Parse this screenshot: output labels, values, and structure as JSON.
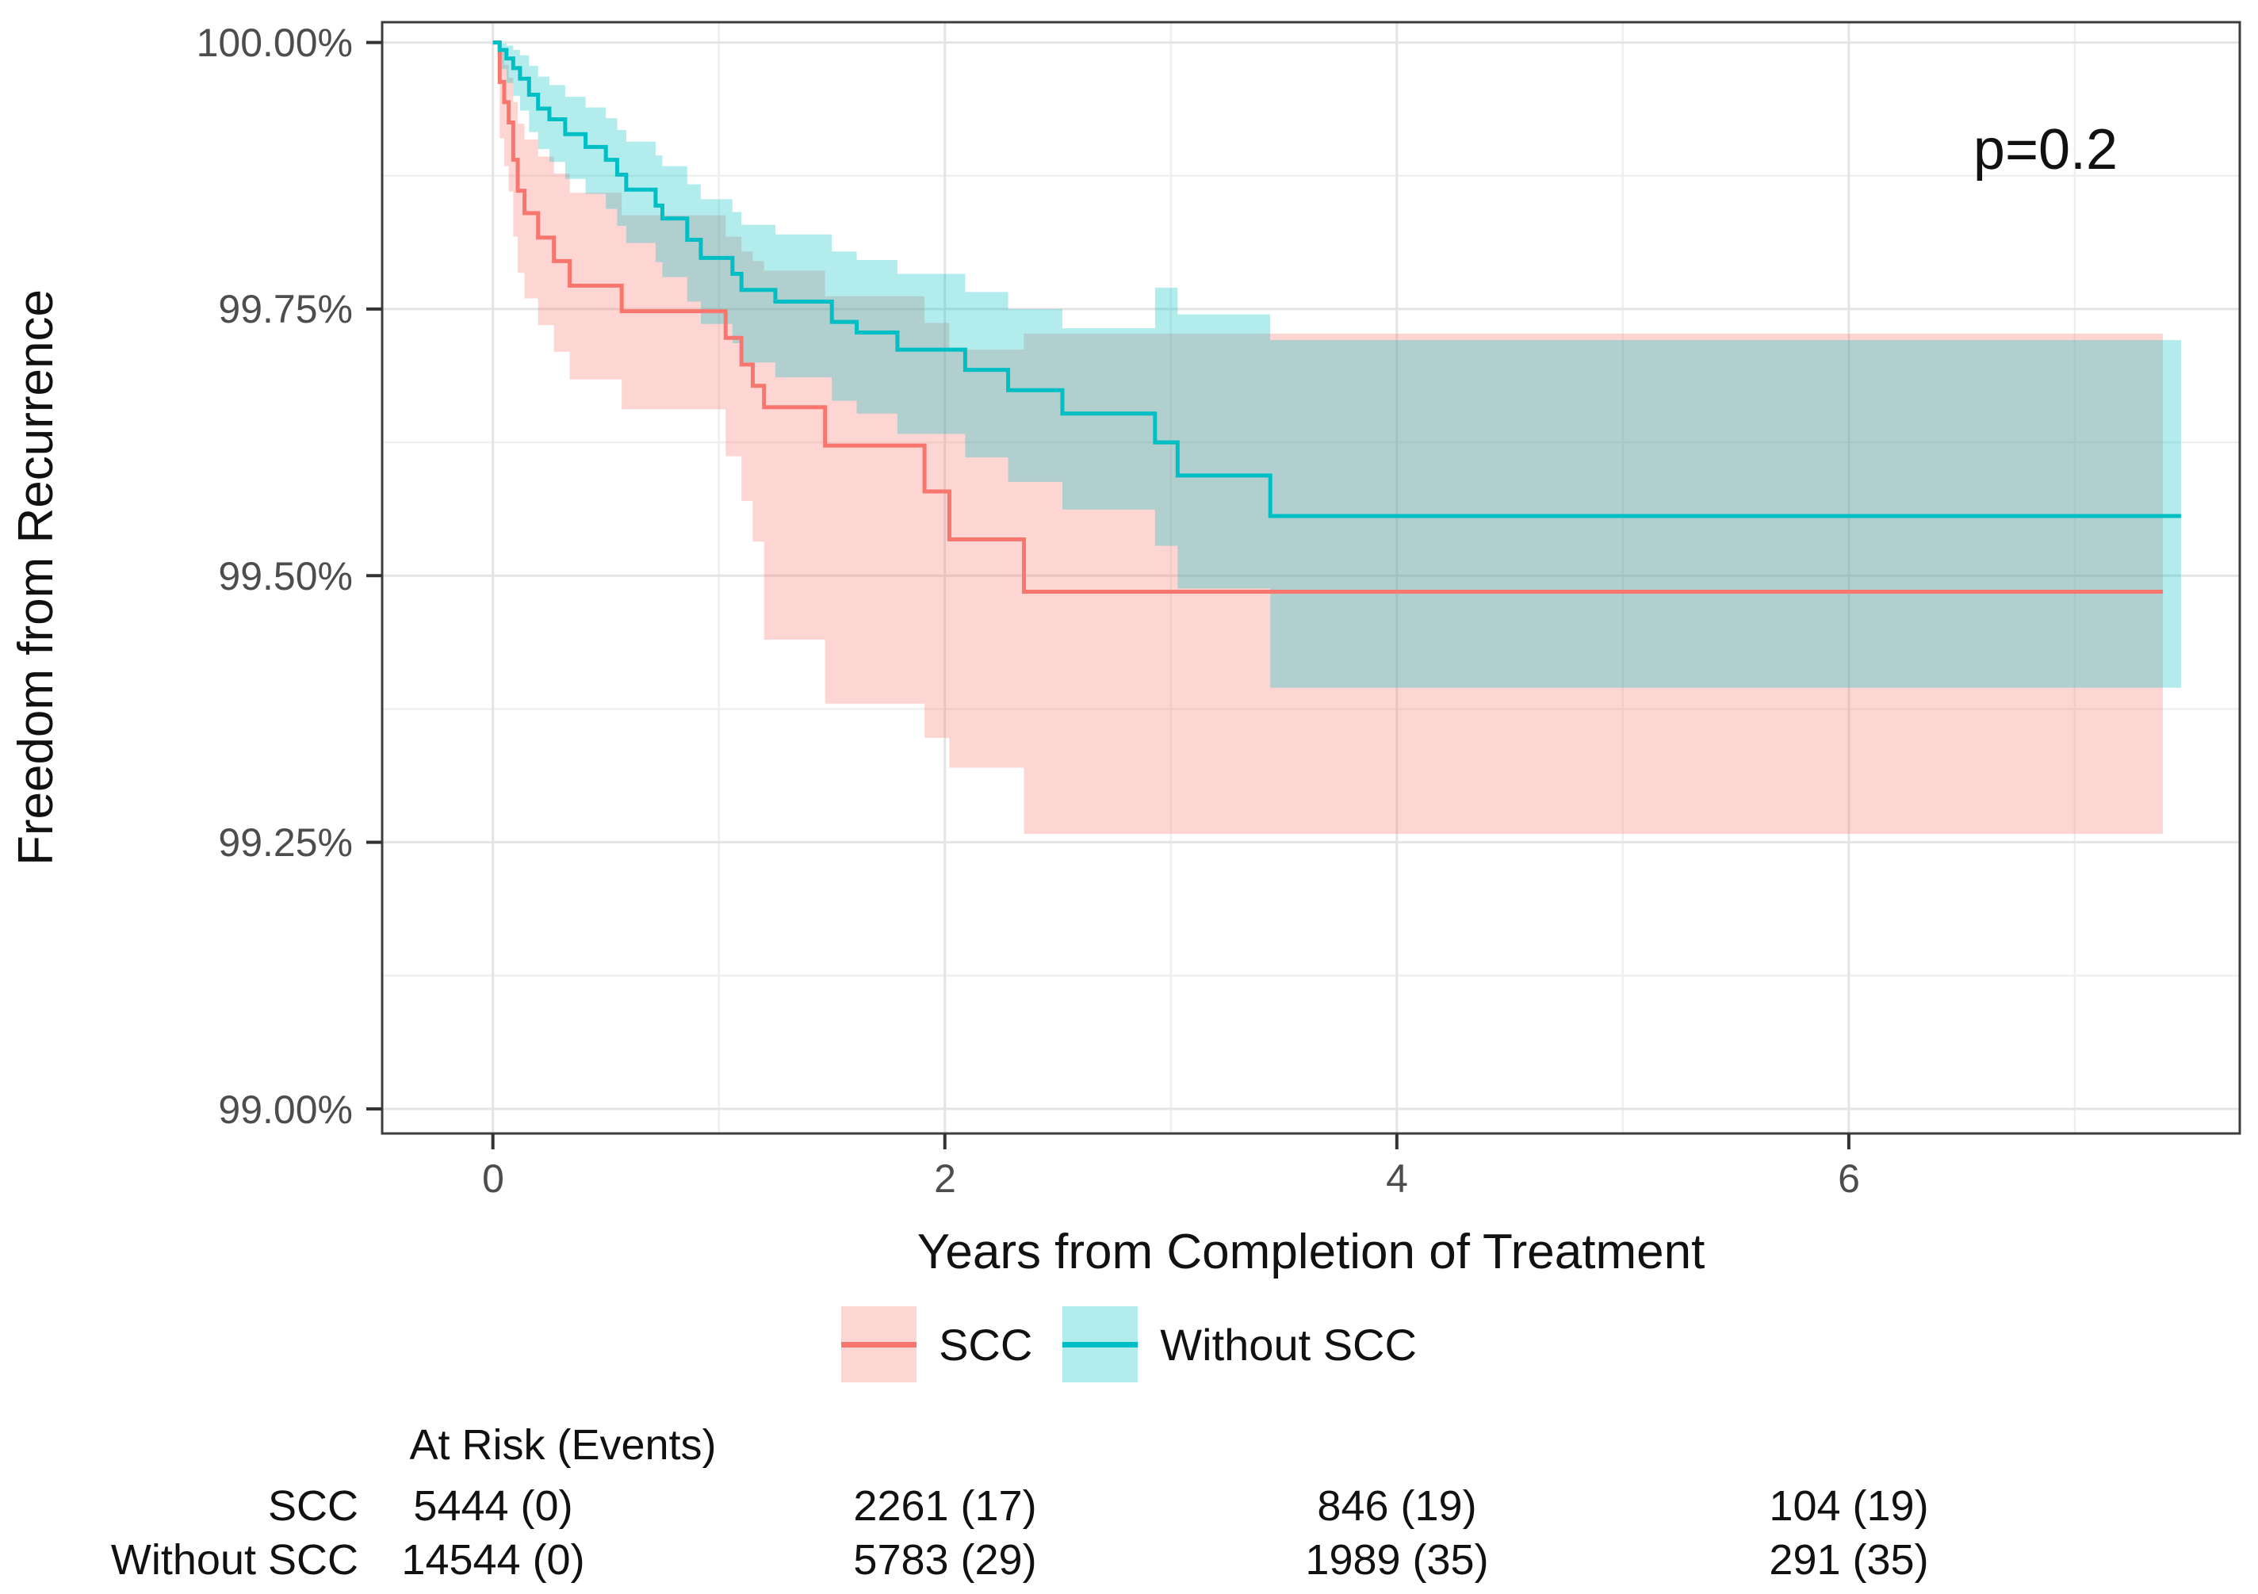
{
  "p_value": "p=0.2",
  "axes": {
    "x_title": "Years from Completion of Treatment",
    "y_title": "Freedom from Recurrence",
    "x_tick_labels": [
      "0",
      "2",
      "4",
      "6"
    ],
    "y_tick_labels": [
      "100.00%",
      "99.75%",
      "99.50%",
      "99.25%",
      "99.00%"
    ]
  },
  "legend": {
    "items": [
      {
        "label": "SCC",
        "line_color": "#F8766D",
        "fill_color": "rgba(248,118,109,0.30)"
      },
      {
        "label": "Without SCC",
        "line_color": "#00BFC4",
        "fill_color": "rgba(0,191,196,0.30)"
      }
    ]
  },
  "risk_table": {
    "title": "At Risk (Events)",
    "rows": [
      {
        "label": "SCC",
        "values": [
          "5444 (0)",
          "2261 (17)",
          "846 (19)",
          "104 (19)"
        ]
      },
      {
        "label": "Without SCC",
        "values": [
          "14544 (0)",
          "5783 (29)",
          "1989 (35)",
          "291 (35)"
        ]
      }
    ]
  },
  "chart_data": {
    "type": "line",
    "subtype": "kaplan-meier-step-with-confidence-bands",
    "title": "",
    "xlabel": "Years from Completion of Treatment",
    "ylabel": "Freedom from Recurrence",
    "xlim": [
      -0.49,
      7.73
    ],
    "ylim": [
      98.977,
      100.019
    ],
    "x_major_ticks": [
      0,
      2,
      4,
      6
    ],
    "x_minor_ticks": [
      1,
      3,
      5,
      7
    ],
    "y_major_ticks": [
      100,
      99.75,
      99.5,
      99.25,
      99
    ],
    "y_minor_ticks": [
      99.875,
      99.625,
      99.375,
      99.125
    ],
    "grid": true,
    "legend_position": "bottom",
    "annotation": {
      "text": "p=0.2",
      "x": 6.87,
      "y": 99.93
    },
    "risk_table_times": [
      0,
      2,
      4,
      6
    ],
    "series": [
      {
        "name": "SCC",
        "color": "#F8766D",
        "fill": "rgba(248,118,109,0.30)",
        "end_time": 7.39,
        "steps_format": [
          "time_years",
          "survival_pct",
          "ci_lower_pct",
          "ci_upper_pct"
        ],
        "steps": [
          [
            0.0,
            100.0,
            100.0,
            100.0
          ],
          [
            0.03,
            99.963,
            99.91,
            99.991
          ],
          [
            0.05,
            99.944,
            99.884,
            99.979
          ],
          [
            0.07,
            99.925,
            99.86,
            99.967
          ],
          [
            0.09,
            99.89,
            99.818,
            99.944
          ],
          [
            0.11,
            99.861,
            99.784,
            99.924
          ],
          [
            0.14,
            99.84,
            99.76,
            99.909
          ],
          [
            0.2,
            99.817,
            99.735,
            99.893
          ],
          [
            0.27,
            99.795,
            99.71,
            99.877
          ],
          [
            0.34,
            99.772,
            99.684,
            99.859
          ],
          [
            0.57,
            99.748,
            99.656,
            99.838
          ],
          [
            1.03,
            99.723,
            99.612,
            99.818
          ],
          [
            1.1,
            99.698,
            99.57,
            99.804
          ],
          [
            1.15,
            99.678,
            99.532,
            99.795
          ],
          [
            1.2,
            99.658,
            99.44,
            99.786
          ],
          [
            1.47,
            99.622,
            99.38,
            99.762
          ],
          [
            1.91,
            99.579,
            99.348,
            99.737
          ],
          [
            2.02,
            99.534,
            99.32,
            99.712
          ],
          [
            2.35,
            99.485,
            99.258,
            99.727
          ]
        ]
      },
      {
        "name": "Without SCC",
        "color": "#00BFC4",
        "fill": "rgba(0,191,196,0.30)",
        "end_time": 7.47,
        "steps_format": [
          "time_years",
          "survival_pct",
          "ci_lower_pct",
          "ci_upper_pct"
        ],
        "steps": [
          [
            0.0,
            100.0,
            100.0,
            100.0
          ],
          [
            0.03,
            99.993,
            99.975,
            99.999
          ],
          [
            0.06,
            99.985,
            99.962,
            99.997
          ],
          [
            0.09,
            99.976,
            99.95,
            99.993
          ],
          [
            0.12,
            99.966,
            99.936,
            99.988
          ],
          [
            0.16,
            99.951,
            99.916,
            99.978
          ],
          [
            0.2,
            99.938,
            99.9,
            99.968
          ],
          [
            0.25,
            99.928,
            99.888,
            99.96
          ],
          [
            0.32,
            99.914,
            99.872,
            99.949
          ],
          [
            0.41,
            99.902,
            99.858,
            99.939
          ],
          [
            0.5,
            99.89,
            99.844,
            99.929
          ],
          [
            0.55,
            99.876,
            99.828,
            99.918
          ],
          [
            0.59,
            99.862,
            99.812,
            99.907
          ],
          [
            0.72,
            99.847,
            99.794,
            99.894
          ],
          [
            0.75,
            99.835,
            99.78,
            99.884
          ],
          [
            0.86,
            99.815,
            99.757,
            99.867
          ],
          [
            0.92,
            99.798,
            99.736,
            99.853
          ],
          [
            1.06,
            99.783,
            99.718,
            99.841
          ],
          [
            1.1,
            99.768,
            99.7,
            99.829
          ],
          [
            1.25,
            99.757,
            99.686,
            99.82
          ],
          [
            1.5,
            99.738,
            99.664,
            99.804
          ],
          [
            1.61,
            99.728,
            99.652,
            99.796
          ],
          [
            1.79,
            99.712,
            99.633,
            99.783
          ],
          [
            2.09,
            99.693,
            99.611,
            99.766
          ],
          [
            2.28,
            99.674,
            99.588,
            99.75
          ],
          [
            2.52,
            99.652,
            99.562,
            99.732
          ],
          [
            2.93,
            99.625,
            99.528,
            99.77
          ],
          [
            3.03,
            99.594,
            99.488,
            99.745
          ],
          [
            3.44,
            99.556,
            99.395,
            99.721
          ]
        ]
      }
    ]
  }
}
